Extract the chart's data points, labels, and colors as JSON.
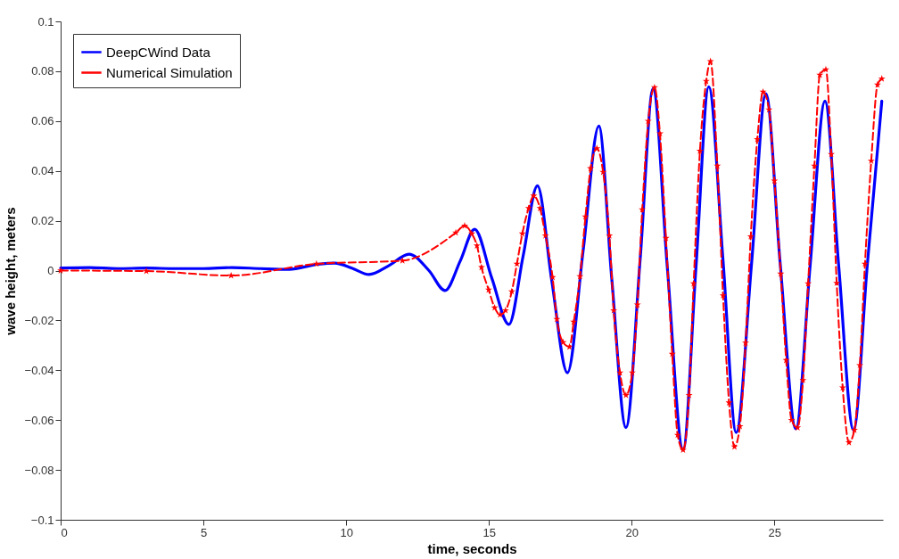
{
  "chart_data": {
    "type": "line",
    "xlabel": "time, seconds",
    "ylabel": "wave height, meters",
    "xlim": [
      0,
      28.8
    ],
    "xticks": [
      0,
      5,
      10,
      15,
      20,
      25
    ],
    "ylim": [
      -0.1,
      0.1
    ],
    "yticks": [
      -0.1,
      -0.08,
      -0.06,
      -0.04,
      -0.02,
      0,
      0.02,
      0.04,
      0.06,
      0.08,
      0.1
    ],
    "grid": false,
    "legend": "top left",
    "series": [
      {
        "name": "DeepCWind Data",
        "color": "#0000ff",
        "marker": "none",
        "line_style": "solid",
        "x": [
          0,
          1,
          2,
          3,
          4,
          5,
          6,
          7,
          8,
          9,
          9.6,
          10.2,
          10.8,
          11.5,
          12.2,
          12.9,
          13.46,
          14.0,
          14.5,
          15.1,
          15.7,
          16.2,
          16.7,
          17.2,
          17.75,
          18.3,
          18.85,
          19.3,
          19.8,
          20.3,
          20.75,
          21.25,
          21.8,
          22.25,
          22.7,
          23.2,
          23.66,
          24.2,
          24.7,
          25.2,
          25.75,
          26.25,
          26.77,
          27.25,
          27.77,
          28.25,
          28.76
        ],
        "values": [
          0.001,
          0.0012,
          0.0008,
          0.001,
          0.0008,
          0.0008,
          0.0012,
          0.0008,
          0.0005,
          0.0025,
          0.003,
          0.001,
          -0.0016,
          0.002,
          0.0066,
          0.0,
          -0.008,
          0.004,
          0.0166,
          -0.003,
          -0.0216,
          0.006,
          0.034,
          -0.004,
          -0.041,
          0.008,
          0.058,
          -0.003,
          -0.063,
          0.005,
          0.073,
          0.001,
          -0.072,
          0.001,
          0.0738,
          0.004,
          -0.065,
          0.003,
          0.071,
          0.003,
          -0.0635,
          0.002,
          0.068,
          0.002,
          -0.064,
          0.002,
          0.068
        ]
      },
      {
        "name": "Numerical Simulation",
        "color": "#ff0000",
        "marker": "star",
        "line_style": "dashed",
        "x": [
          0,
          3,
          5.97,
          8.96,
          11.97,
          13.84,
          14.15,
          14.4,
          14.58,
          14.74,
          14.99,
          15.2,
          15.39,
          15.58,
          15.8,
          15.98,
          16.17,
          16.39,
          16.57,
          16.79,
          16.98,
          17.23,
          17.38,
          17.6,
          17.82,
          17.97,
          18.19,
          18.38,
          18.56,
          18.78,
          19.0,
          19.22,
          19.37,
          19.59,
          19.8,
          20.02,
          20.2,
          20.37,
          20.58,
          20.8,
          20.99,
          21.2,
          21.42,
          21.61,
          21.8,
          22.01,
          22.17,
          22.39,
          22.61,
          22.76,
          23.0,
          23.2,
          23.41,
          23.6,
          23.79,
          23.99,
          24.17,
          24.4,
          24.6,
          24.81,
          25.0,
          25.22,
          25.41,
          25.6,
          25.81,
          26.0,
          26.18,
          26.4,
          26.59,
          26.8,
          26.99,
          27.18,
          27.39,
          27.61,
          27.8,
          27.99,
          28.17,
          28.39,
          28.61,
          28.76
        ],
        "values": [
          0,
          -0.0002,
          -0.002,
          0.0027,
          0.004,
          0.0152,
          0.018,
          0.0148,
          0.01,
          0.0013,
          -0.0077,
          -0.0149,
          -0.0177,
          -0.016,
          -0.0084,
          0.0027,
          0.0148,
          0.025,
          0.03,
          0.025,
          0.014,
          -0.0027,
          -0.0195,
          -0.0288,
          -0.0306,
          -0.0206,
          -0.0023,
          0.0216,
          0.041,
          0.049,
          0.0395,
          0.014,
          -0.016,
          -0.041,
          -0.05,
          -0.041,
          -0.0137,
          0.0245,
          0.06,
          0.0735,
          0.055,
          0.013,
          -0.0335,
          -0.066,
          -0.072,
          -0.05,
          -0.0052,
          0.048,
          0.076,
          0.084,
          0.042,
          -0.01,
          -0.053,
          -0.0707,
          -0.0625,
          -0.029,
          0.0137,
          0.0527,
          0.0717,
          0.0646,
          0.036,
          -0.0013,
          -0.036,
          -0.06,
          -0.063,
          -0.044,
          -0.0052,
          0.042,
          0.0785,
          0.0807,
          0.0467,
          -0.005,
          -0.047,
          -0.069,
          -0.064,
          -0.038,
          0.0027,
          0.044,
          0.0746,
          0.077
        ]
      }
    ]
  }
}
